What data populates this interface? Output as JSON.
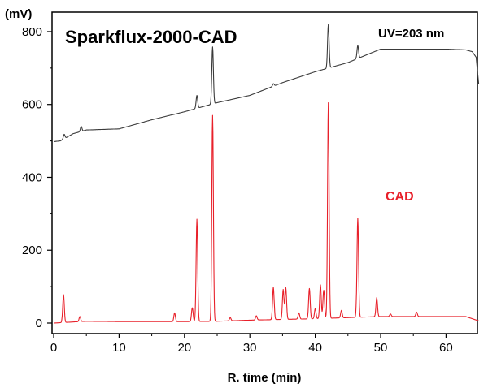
{
  "chart_data": {
    "type": "line",
    "title": "Sparkflux-2000-CAD",
    "ylabel": "(mV)",
    "xlabel": "R. time (min)",
    "xlim": [
      0,
      65
    ],
    "ylim": [
      -30,
      840
    ],
    "x_ticks": [
      0,
      10,
      20,
      30,
      40,
      50,
      60
    ],
    "y_ticks": [
      0,
      200,
      400,
      600,
      800
    ],
    "grid": false,
    "annotations": [
      "UV=203 nm",
      "CAD"
    ],
    "series": [
      {
        "name": "UV=203 nm",
        "color": "#3a3a3a",
        "baseline": [
          [
            0,
            498
          ],
          [
            1,
            500
          ],
          [
            2,
            510
          ],
          [
            3,
            520
          ],
          [
            5,
            530
          ],
          [
            10,
            533
          ],
          [
            15,
            558
          ],
          [
            20,
            580
          ],
          [
            25,
            605
          ],
          [
            30,
            625
          ],
          [
            35,
            660
          ],
          [
            40,
            690
          ],
          [
            45,
            715
          ],
          [
            47,
            730
          ],
          [
            50,
            752
          ],
          [
            55,
            752
          ],
          [
            60,
            752
          ],
          [
            63,
            750
          ],
          [
            64,
            745
          ],
          [
            64.6,
            730
          ],
          [
            65,
            656
          ]
        ],
        "peaks": [
          [
            1.6,
            518
          ],
          [
            4.2,
            540
          ],
          [
            21.9,
            625
          ],
          [
            24.3,
            758
          ],
          [
            33.6,
            657
          ],
          [
            35.5,
            663
          ],
          [
            42.0,
            820
          ],
          [
            46.5,
            762
          ]
        ]
      },
      {
        "name": "CAD",
        "color": "#e8202a",
        "baseline": [
          [
            0,
            0
          ],
          [
            5,
            5
          ],
          [
            10,
            4
          ],
          [
            20,
            4
          ],
          [
            25,
            5
          ],
          [
            30,
            8
          ],
          [
            35,
            10
          ],
          [
            40,
            12
          ],
          [
            45,
            15
          ],
          [
            50,
            18
          ],
          [
            55,
            18
          ],
          [
            60,
            18
          ],
          [
            63,
            18
          ],
          [
            64,
            12
          ],
          [
            65,
            6
          ]
        ],
        "peaks": [
          [
            1.5,
            78
          ],
          [
            4.0,
            18
          ],
          [
            18.5,
            28
          ],
          [
            21.2,
            42
          ],
          [
            21.9,
            285
          ],
          [
            24.3,
            570
          ],
          [
            27.0,
            15
          ],
          [
            31.0,
            20
          ],
          [
            33.6,
            98
          ],
          [
            35.1,
            92
          ],
          [
            35.5,
            97
          ],
          [
            37.5,
            28
          ],
          [
            39.1,
            95
          ],
          [
            40.0,
            40
          ],
          [
            40.8,
            105
          ],
          [
            41.3,
            90
          ],
          [
            42.0,
            605
          ],
          [
            44.0,
            35
          ],
          [
            46.5,
            288
          ],
          [
            49.4,
            70
          ],
          [
            51.5,
            25
          ],
          [
            55.5,
            30
          ]
        ]
      }
    ]
  }
}
